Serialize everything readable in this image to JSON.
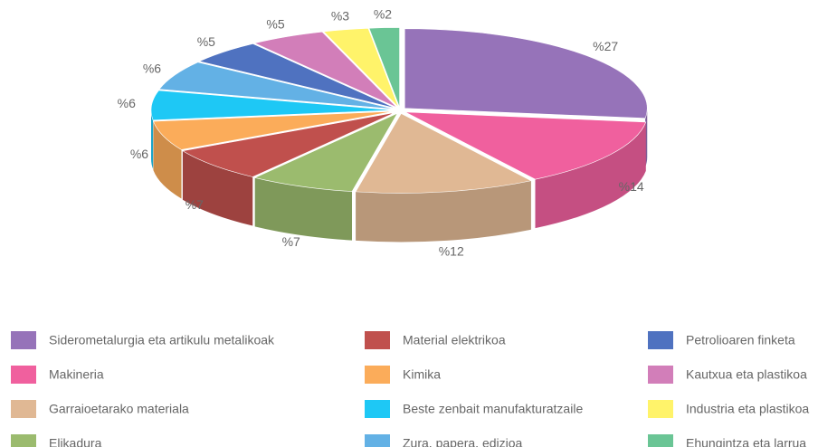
{
  "chart_data": {
    "type": "pie",
    "categories": [
      "Siderometalurgia eta artikulu metalikoak",
      "Makineria",
      "Garraioetarako materiala",
      "Elikadura",
      "Material elektrikoa",
      "Kimika",
      "Beste zenbait manufakturatzaile",
      "Zura, papera, edizioa",
      "Petrolioaren finketa",
      "Kautxua eta plastikoa",
      "Industria eta plastikoa",
      "Ehungintza eta larrua"
    ],
    "values": [
      27,
      14,
      12,
      7,
      7,
      6,
      6,
      6,
      5,
      5,
      3,
      2
    ],
    "value_labels": [
      "%27",
      "%14",
      "%12",
      "%7",
      "%7",
      "%6",
      "%6",
      "%6",
      "%5",
      "%5",
      "%3",
      "%2"
    ],
    "colors": [
      "#9673b9",
      "#f0609e",
      "#e0b894",
      "#9bbb6e",
      "#c0504d",
      "#fbac5a",
      "#1ec8f5",
      "#63b1e5",
      "#4f72c0",
      "#d27eb9",
      "#fff36a",
      "#6ac595"
    ]
  }
}
